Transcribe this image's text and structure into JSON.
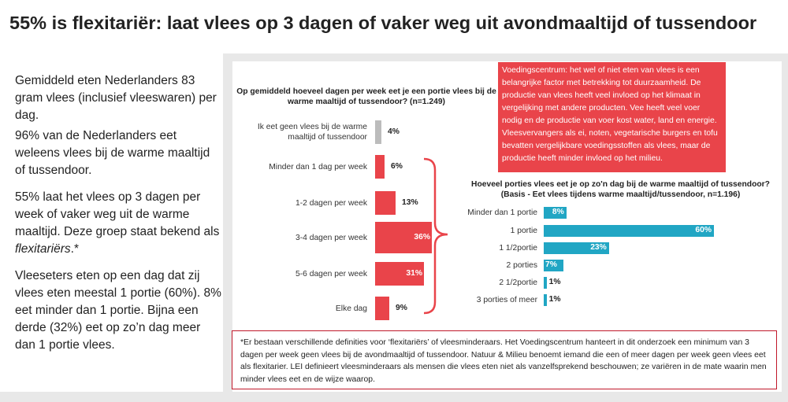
{
  "title": "55% is flexitariër: laat vlees op 3 dagen of vaker weg uit avondmaaltijd of tussendoor",
  "left_panel": {
    "p1": "Gemiddeld eten Nederlanders 83 gram vlees (inclusief vleeswaren) per dag.",
    "p2": "96% van de Nederlanders eet weleens vlees bij de warme maaltijd of tussendoor.",
    "p3_text": "55% laat het vlees op 3 dagen per week of vaker weg uit de warme maaltijd. Deze groep staat bekend als ",
    "p3_em": "flexitariërs",
    "p3_end": ".*",
    "p4": "Vleeseters eten op een dag dat zij vlees eten meestal 1 portie (60%). 8% eet minder dan 1 portie. Bijna een derde (32%) eet op zo’n dag meer dan 1 portie vlees."
  },
  "info_box": "Voedingscentrum: het wel of niet eten van vlees is een belangrijke factor met betrekking tot duurzaamheid. De productie van vlees heeft veel invloed op het klimaat in vergelijking met andere producten. Vee heeft veel voer nodig en de productie van voer kost water, land en energie. Vleesvervangers als ei, noten, vegetarische burgers en tofu bevatten vergelijkbare voedingsstoffen als vlees, maar de productie heeft minder invloed op het milieu.",
  "footnote": "*Er bestaan verschillende definities voor ‘flexitariërs’ of vleesminderaars. Het Voedingscentrum hanteert in dit onderzoek een minimum van 3 dagen per week geen vlees bij de avondmaaltijd of tussendoor. Natuur & Milieu benoemt iemand die een of meer dagen per week geen vlees eet als flexitarier. LEI definieert vleesminderaars als mensen die vlees eten niet als vanzelfsprekend beschouwen; ze variëren in de mate waarin men minder vlees eet en de wijze waarop.",
  "colors": {
    "red": "#e9444a",
    "grey": "#bcbcbc",
    "blue": "#21a6c4",
    "border_red": "#c0182a"
  },
  "chart_data": [
    {
      "type": "bar",
      "orientation": "horizontal",
      "title": "Op gemiddeld hoeveel dagen per week eet je een portie vlees bij de warme maaltijd of tussendoor? (n=1.249)",
      "categories": [
        "Ik eet geen vlees bij de warme maaltijd of tussendoor",
        "Minder dan 1 dag per week",
        "1-2 dagen per week",
        "3-4 dagen per week",
        "5-6 dagen per week",
        "Elke dag"
      ],
      "values": [
        4,
        6,
        13,
        36,
        31,
        9
      ],
      "labels": [
        "4%",
        "6%",
        "13%",
        "36%",
        "31%",
        "9%"
      ],
      "xlim": [
        0,
        36
      ]
    },
    {
      "type": "bar",
      "orientation": "horizontal",
      "title": "Hoeveel porties vlees eet je op zo'n dag bij de warme maaltijd of tussendoor? (Basis - Eet vlees tijdens warme maaltijd/tussendoor, n=1.196)",
      "categories": [
        "Minder dan 1 portie",
        "1 portie",
        "1 1/2portie",
        "2 porties",
        "2 1/2portie",
        "3 porties of meer"
      ],
      "values": [
        8,
        60,
        23,
        7,
        1,
        1
      ],
      "labels": [
        "8%",
        "60%",
        "23%",
        "7%",
        "1%",
        "1%"
      ],
      "xlim": [
        0,
        60
      ]
    }
  ]
}
